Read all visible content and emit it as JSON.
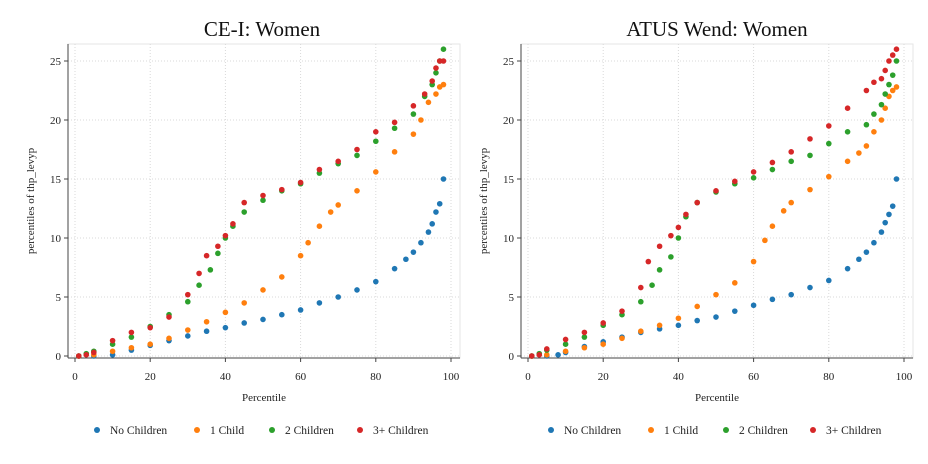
{
  "chart_data": [
    {
      "type": "scatter",
      "title": "CE-I: Women",
      "xlabel": "Percentile",
      "ylabel": "percentiles of thp_levyp",
      "xlim": [
        0,
        100
      ],
      "ylim": [
        0,
        26
      ],
      "xticks": [
        "0",
        "20",
        "40",
        "60",
        "80",
        "100"
      ],
      "yticks": [
        "0",
        "5",
        "10",
        "15",
        "20",
        "25"
      ],
      "grid": true,
      "legend_position": "bottom",
      "series": [
        {
          "name": "No Children",
          "color": "#1f77b4",
          "x": [
            1,
            5,
            10,
            15,
            20,
            25,
            30,
            35,
            40,
            45,
            50,
            55,
            60,
            65,
            70,
            75,
            80,
            85,
            88,
            90,
            92,
            94,
            95,
            96,
            97,
            98
          ],
          "y": [
            0,
            0,
            0.1,
            0.5,
            0.9,
            1.3,
            1.7,
            2.1,
            2.4,
            2.8,
            3.1,
            3.5,
            3.9,
            4.5,
            5.0,
            5.6,
            6.3,
            7.4,
            8.2,
            8.8,
            9.6,
            10.5,
            11.2,
            12.2,
            12.9,
            15.0
          ]
        },
        {
          "name": "1 Child",
          "color": "#ff7f0e",
          "x": [
            1,
            5,
            10,
            15,
            20,
            25,
            30,
            35,
            40,
            45,
            50,
            55,
            60,
            62,
            65,
            68,
            70,
            75,
            80,
            85,
            90,
            92,
            94,
            96,
            97,
            98
          ],
          "y": [
            0,
            0.1,
            0.4,
            0.7,
            1.0,
            1.5,
            2.2,
            2.9,
            3.7,
            4.5,
            5.6,
            6.7,
            8.5,
            9.6,
            11.0,
            12.2,
            12.8,
            14.0,
            15.6,
            17.3,
            18.8,
            20.0,
            21.5,
            22.2,
            22.8,
            23.0
          ]
        },
        {
          "name": "2 Children",
          "color": "#2ca02c",
          "x": [
            1,
            3,
            5,
            10,
            15,
            20,
            25,
            30,
            33,
            36,
            38,
            40,
            42,
            45,
            50,
            55,
            60,
            65,
            70,
            75,
            80,
            85,
            90,
            93,
            95,
            96,
            97,
            98
          ],
          "y": [
            0,
            0.2,
            0.4,
            1.0,
            1.6,
            2.5,
            3.5,
            4.6,
            6.0,
            7.3,
            8.7,
            10.0,
            11.0,
            12.2,
            13.2,
            14.0,
            14.6,
            15.5,
            16.3,
            17.0,
            18.2,
            19.3,
            20.5,
            22.0,
            23.0,
            24.0,
            25.0,
            26.0
          ]
        },
        {
          "name": "3+ Children",
          "color": "#d62728",
          "x": [
            1,
            3,
            5,
            10,
            15,
            20,
            25,
            30,
            33,
            35,
            38,
            40,
            42,
            45,
            50,
            55,
            60,
            65,
            70,
            75,
            80,
            85,
            90,
            93,
            95,
            96,
            97,
            98
          ],
          "y": [
            0,
            0.1,
            0.3,
            1.3,
            2.0,
            2.4,
            3.3,
            5.2,
            7.0,
            8.5,
            9.3,
            10.2,
            11.2,
            13.0,
            13.6,
            14.1,
            14.7,
            15.8,
            16.5,
            17.5,
            19.0,
            19.8,
            21.2,
            22.2,
            23.3,
            24.4,
            25.0,
            25.0
          ]
        }
      ]
    },
    {
      "type": "scatter",
      "title": "ATUS Wend: Women",
      "xlabel": "Percentile",
      "ylabel": "percentiles of thp_levyp",
      "xlim": [
        0,
        100
      ],
      "ylim": [
        0,
        26
      ],
      "xticks": [
        "0",
        "20",
        "40",
        "60",
        "80",
        "100"
      ],
      "yticks": [
        "0",
        "5",
        "10",
        "15",
        "20",
        "25"
      ],
      "grid": true,
      "legend_position": "bottom",
      "series": [
        {
          "name": "No Children",
          "color": "#1f77b4",
          "x": [
            1,
            5,
            8,
            10,
            15,
            20,
            25,
            30,
            35,
            40,
            45,
            50,
            55,
            60,
            65,
            70,
            75,
            80,
            85,
            88,
            90,
            92,
            94,
            95,
            96,
            97,
            98
          ],
          "y": [
            0,
            0,
            0.1,
            0.3,
            0.8,
            1.2,
            1.6,
            2.0,
            2.3,
            2.6,
            3.0,
            3.3,
            3.8,
            4.3,
            4.8,
            5.2,
            5.8,
            6.4,
            7.4,
            8.2,
            8.8,
            9.6,
            10.5,
            11.3,
            12.0,
            12.7,
            15.0
          ]
        },
        {
          "name": "1 Child",
          "color": "#ff7f0e",
          "x": [
            1,
            5,
            10,
            15,
            20,
            25,
            30,
            35,
            40,
            45,
            50,
            55,
            60,
            63,
            65,
            68,
            70,
            75,
            80,
            85,
            88,
            90,
            92,
            94,
            95,
            96,
            97,
            98
          ],
          "y": [
            0,
            0.1,
            0.4,
            0.7,
            1.0,
            1.5,
            2.1,
            2.6,
            3.2,
            4.2,
            5.2,
            6.2,
            8.0,
            9.8,
            11.0,
            12.3,
            13.0,
            14.1,
            15.2,
            16.5,
            17.2,
            17.8,
            19.0,
            20.0,
            21.0,
            22.0,
            22.5,
            22.8
          ]
        },
        {
          "name": "2 Children",
          "color": "#2ca02c",
          "x": [
            1,
            3,
            5,
            10,
            15,
            20,
            25,
            30,
            33,
            35,
            38,
            40,
            42,
            45,
            50,
            55,
            60,
            65,
            70,
            75,
            80,
            85,
            90,
            92,
            94,
            95,
            96,
            97,
            98
          ],
          "y": [
            0,
            0.2,
            0.5,
            1.0,
            1.6,
            2.6,
            3.5,
            4.6,
            6.0,
            7.3,
            8.4,
            10.0,
            11.8,
            13.0,
            13.9,
            14.6,
            15.1,
            15.8,
            16.5,
            17.0,
            18.0,
            19.0,
            19.6,
            20.5,
            21.3,
            22.2,
            23.0,
            23.8,
            25.0
          ]
        },
        {
          "name": "3+ Children",
          "color": "#d62728",
          "x": [
            1,
            3,
            5,
            10,
            15,
            20,
            25,
            30,
            32,
            35,
            38,
            40,
            42,
            45,
            50,
            55,
            60,
            65,
            70,
            75,
            80,
            85,
            90,
            92,
            94,
            95,
            96,
            97,
            98
          ],
          "y": [
            0,
            0.1,
            0.6,
            1.4,
            2.0,
            2.8,
            3.8,
            5.8,
            8.0,
            9.3,
            10.2,
            10.9,
            12.0,
            13.0,
            14.0,
            14.8,
            15.6,
            16.4,
            17.3,
            18.4,
            19.5,
            21.0,
            22.5,
            23.2,
            23.5,
            24.2,
            25.0,
            25.5,
            26.0
          ]
        }
      ]
    }
  ]
}
